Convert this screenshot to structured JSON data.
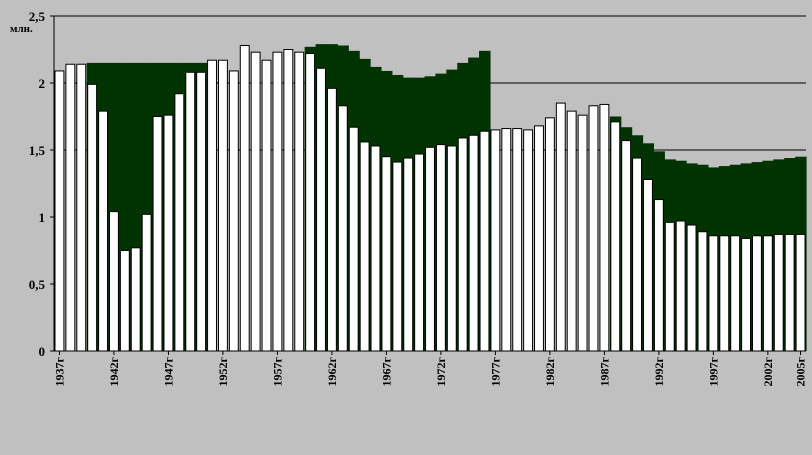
{
  "chart_data": {
    "type": "bar",
    "unit_label": "млн.",
    "ylim": [
      0,
      2.5
    ],
    "y_ticks": [
      "0",
      "0,5",
      "1",
      "1,5",
      "2",
      "2,5"
    ],
    "x_start_year": 1937,
    "x_tick_labels": [
      "1937г",
      "1942г",
      "1947г",
      "1952г",
      "1957г",
      "1962г",
      "1967г",
      "1972г",
      "1977г",
      "1982г",
      "1987г",
      "1992г",
      "1997г",
      "2002г",
      "2005г"
    ],
    "grid_values": [
      1.5,
      2.0,
      2.5
    ],
    "series": [
      {
        "color": "#ffffff",
        "values": [
          2.09,
          2.14,
          2.14,
          1.99,
          1.79,
          1.04,
          0.75,
          0.77,
          1.02,
          1.75,
          1.76,
          1.92,
          2.08,
          2.08,
          2.17,
          2.17,
          2.09,
          2.28,
          2.23,
          2.17,
          2.23,
          2.25,
          2.23,
          2.22,
          2.11,
          1.96,
          1.83,
          1.67,
          1.56,
          1.53,
          1.45,
          1.41,
          1.44,
          1.47,
          1.52,
          1.54,
          1.53,
          1.59,
          1.61,
          1.64,
          1.65,
          1.66,
          1.66,
          1.65,
          1.68,
          1.74,
          1.85,
          1.79,
          1.76,
          1.83,
          1.84,
          1.71,
          1.57,
          1.44,
          1.28,
          1.13,
          0.96,
          0.97,
          0.94,
          0.89,
          0.86,
          0.86,
          0.86,
          0.84,
          0.86,
          0.86,
          0.87,
          0.87,
          0.87
        ]
      },
      {
        "color": "#003300",
        "values": [
          2.09,
          2.14,
          2.14,
          2.15,
          2.15,
          2.15,
          2.15,
          2.15,
          2.15,
          2.15,
          2.15,
          2.15,
          2.15,
          2.15,
          2.17,
          2.17,
          2.09,
          2.28,
          2.23,
          2.17,
          2.23,
          2.25,
          2.23,
          2.27,
          2.29,
          2.29,
          2.28,
          2.24,
          2.18,
          2.12,
          2.09,
          2.06,
          2.04,
          2.04,
          2.05,
          2.07,
          2.1,
          2.15,
          2.19,
          2.24,
          1.65,
          1.66,
          1.66,
          1.65,
          1.68,
          1.74,
          1.85,
          1.79,
          1.76,
          1.83,
          1.84,
          1.75,
          1.67,
          1.61,
          1.55,
          1.49,
          1.43,
          1.42,
          1.4,
          1.39,
          1.37,
          1.38,
          1.39,
          1.4,
          1.41,
          1.42,
          1.43,
          1.44,
          1.45
        ]
      }
    ]
  }
}
